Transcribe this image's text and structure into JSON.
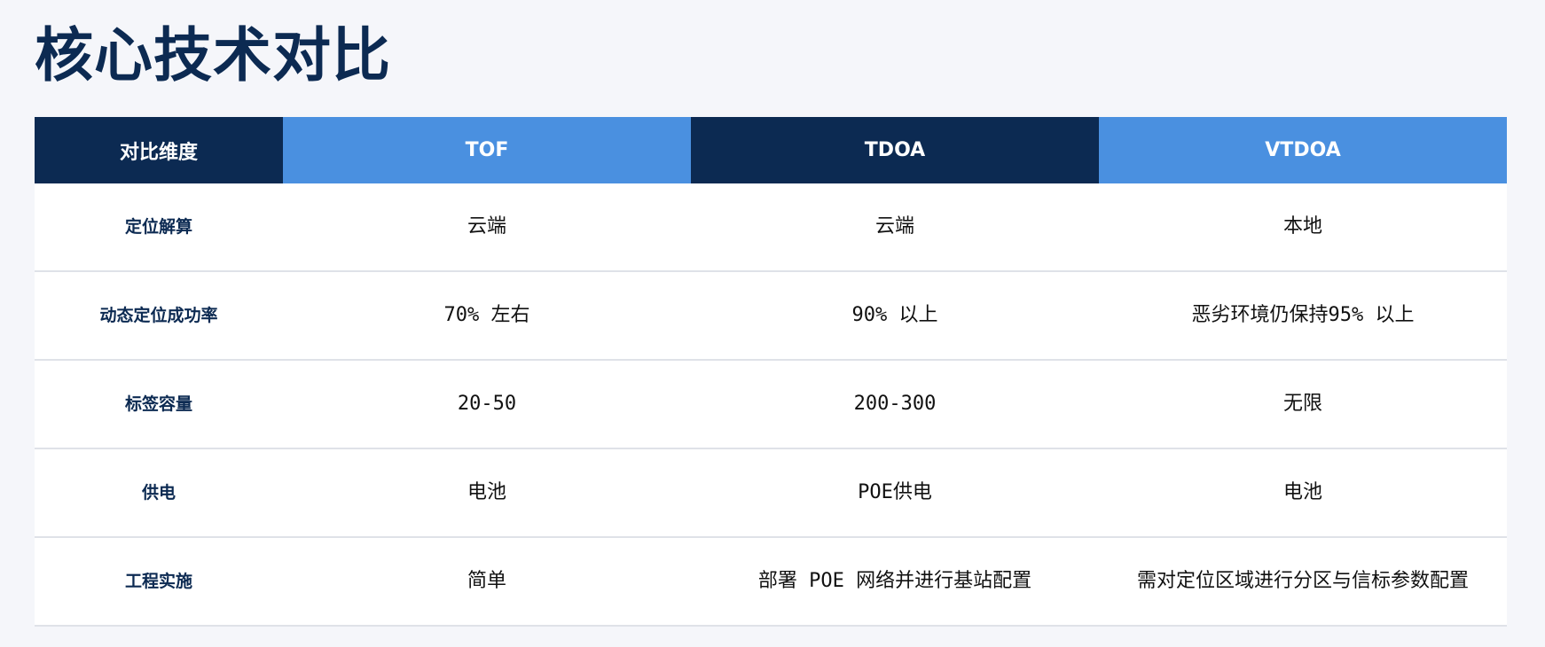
{
  "title": "核心技术对比",
  "colors": {
    "navy": "#0c2a52",
    "blue": "#4a90e0",
    "background": "#f5f6fa"
  },
  "table": {
    "headers": [
      "对比维度",
      "TOF",
      "TDOA",
      "VTDOA"
    ],
    "rows": [
      [
        "定位解算",
        "云端",
        "云端",
        "本地"
      ],
      [
        "动态定位成功率",
        "70% 左右",
        "90% 以上",
        "恶劣环境仍保持95% 以上"
      ],
      [
        "标签容量",
        "20-50",
        "200-300",
        "无限"
      ],
      [
        "供电",
        "电池",
        "POE供电",
        "电池"
      ],
      [
        "工程实施",
        "简单",
        "部署 POE 网络并进行基站配置",
        "需对定位区域进行分区与信标参数配置"
      ]
    ]
  }
}
